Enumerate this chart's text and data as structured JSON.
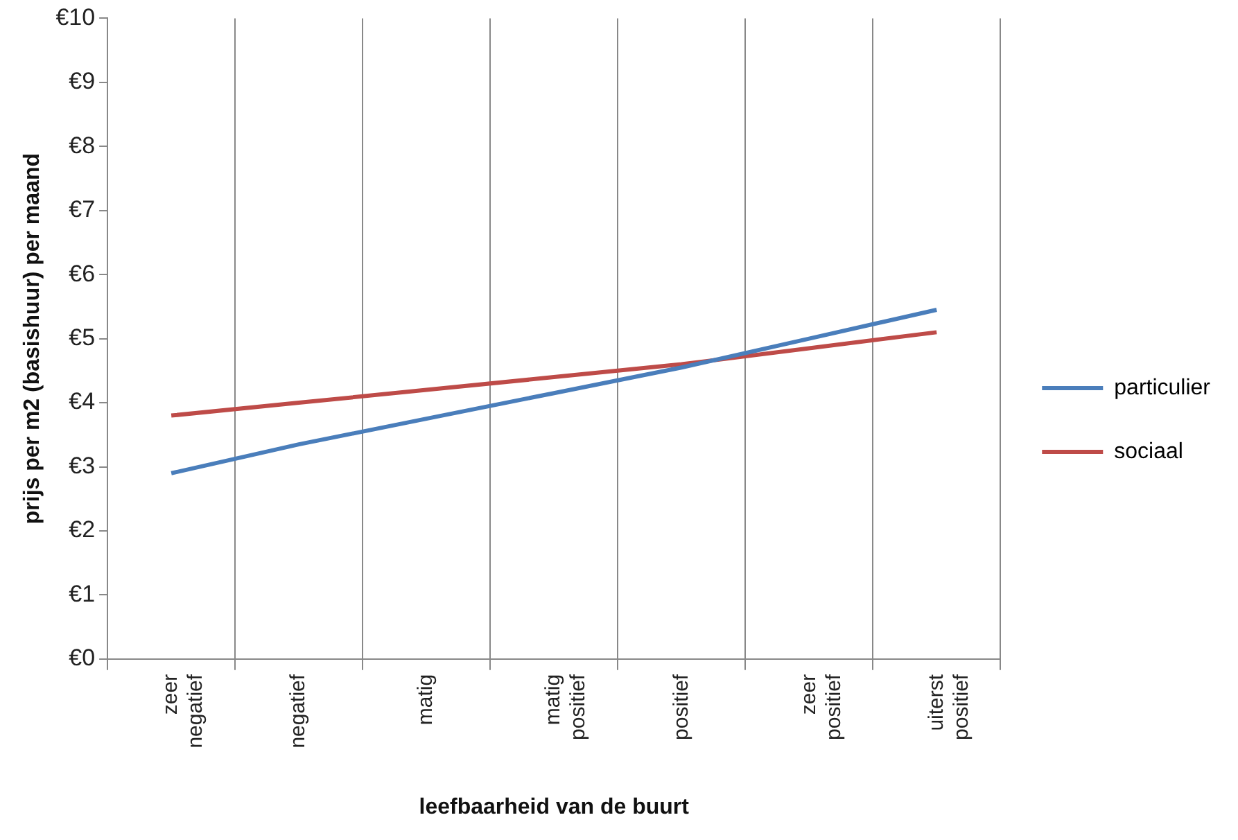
{
  "chart_data": {
    "type": "line",
    "xlabel": "leefbaarheid van de buurt",
    "ylabel": "prijs per m2 (basishuur) per maand",
    "categories": [
      "zeer negatief",
      "negatief",
      "matig",
      "matig positief",
      "positief",
      "zeer positief",
      "uiterst positief"
    ],
    "series": [
      {
        "name": "particulier",
        "color": "#4a7ebb",
        "values": [
          2.9,
          3.35,
          3.75,
          4.15,
          4.55,
          5.0,
          5.45
        ]
      },
      {
        "name": "sociaal",
        "color": "#be4b48",
        "values": [
          3.8,
          4.0,
          4.2,
          4.4,
          4.6,
          4.85,
          5.1
        ]
      }
    ],
    "ylim": [
      0,
      10
    ],
    "yticks": [
      {
        "value": 0,
        "label": "€0"
      },
      {
        "value": 1,
        "label": "€1"
      },
      {
        "value": 2,
        "label": "€2"
      },
      {
        "value": 3,
        "label": "€3"
      },
      {
        "value": 4,
        "label": "€4"
      },
      {
        "value": 5,
        "label": "€5"
      },
      {
        "value": 6,
        "label": "€6"
      },
      {
        "value": 7,
        "label": "€7"
      },
      {
        "value": 8,
        "label": "€8"
      },
      {
        "value": 9,
        "label": "€9"
      },
      {
        "value": 10,
        "label": "€10"
      }
    ],
    "grid": "x",
    "legend": "right",
    "marker": "none",
    "line_style": "solid"
  }
}
